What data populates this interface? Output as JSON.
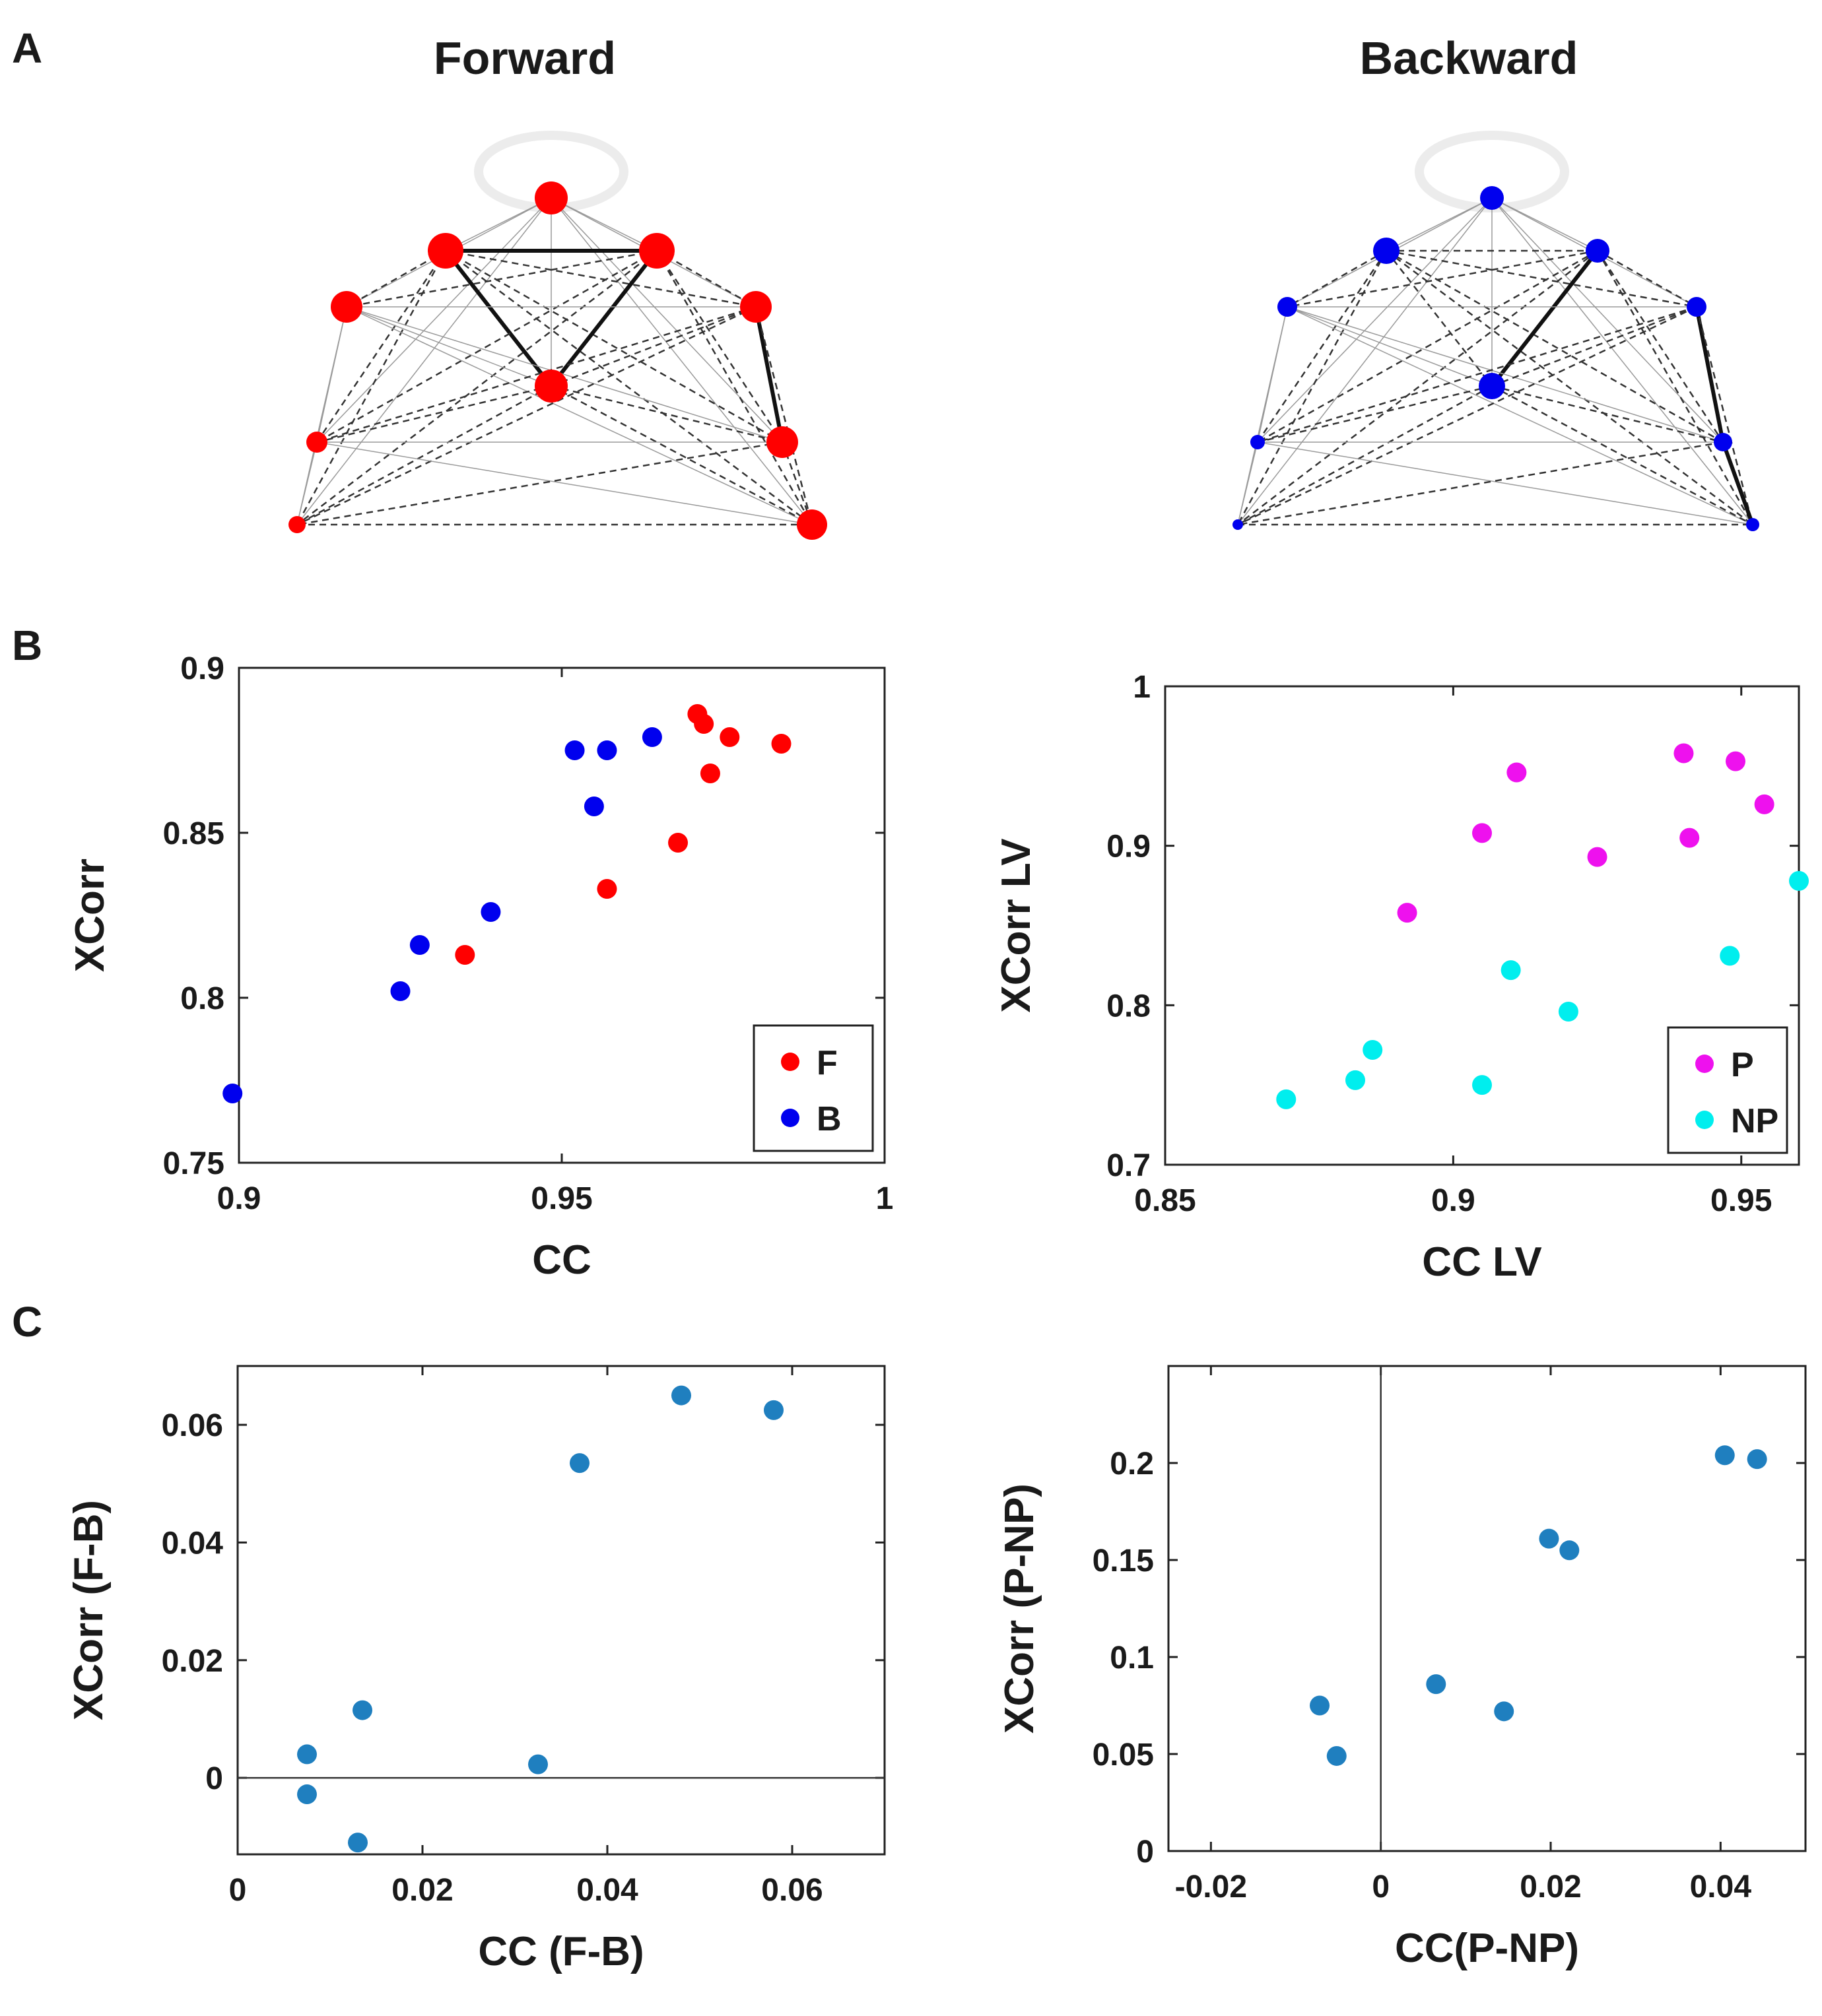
{
  "panel_labels": [
    "A",
    "B",
    "C"
  ],
  "network_titles": {
    "forward": "Forward",
    "backward": "Backward"
  },
  "colors": {
    "forward": "#ff0000",
    "backward": "#0000ee",
    "p": "#ee11ee",
    "np": "#00eeee",
    "diff": "#1f7fbf"
  },
  "chart_data": [
    {
      "id": "b-left",
      "type": "scatter",
      "xlabel": "CC",
      "ylabel": "XCorr",
      "xlim": [
        0.9,
        1
      ],
      "ylim": [
        0.75,
        0.9
      ],
      "xticks": [
        0.9,
        0.95,
        1
      ],
      "xtick_labels": [
        "0.9",
        "0.95",
        "1"
      ],
      "yticks": [
        0.75,
        0.8,
        0.85,
        0.9
      ],
      "ytick_labels": [
        "0.75",
        "0.8",
        "0.85",
        "0.9"
      ],
      "legend": {
        "position": "bottom-right",
        "entries": [
          "F",
          "B"
        ]
      },
      "series": [
        {
          "name": "F",
          "color": "#ff0000",
          "x": [
            0.971,
            0.972,
            0.976,
            0.984,
            0.973,
            0.968,
            0.957,
            0.935
          ],
          "y": [
            0.886,
            0.883,
            0.879,
            0.877,
            0.868,
            0.847,
            0.833,
            0.813
          ]
        },
        {
          "name": "B",
          "color": "#0000ee",
          "x": [
            0.952,
            0.957,
            0.964,
            0.955,
            0.939,
            0.928,
            0.925,
            0.899
          ],
          "y": [
            0.875,
            0.875,
            0.879,
            0.858,
            0.826,
            0.816,
            0.802,
            0.771
          ]
        }
      ]
    },
    {
      "id": "b-right",
      "type": "scatter",
      "xlabel": "CC LV",
      "ylabel": "XCorr LV",
      "xlim": [
        0.85,
        0.96
      ],
      "ylim": [
        0.7,
        1
      ],
      "xticks": [
        0.85,
        0.9,
        0.95
      ],
      "xtick_labels": [
        "0.85",
        "0.9",
        "0.95"
      ],
      "yticks": [
        0.7,
        0.8,
        0.9,
        1
      ],
      "ytick_labels": [
        "0.7",
        "0.8",
        "0.9",
        "1"
      ],
      "legend": {
        "position": "bottom-right",
        "entries": [
          "P",
          "NP"
        ]
      },
      "series": [
        {
          "name": "P",
          "color": "#ee11ee",
          "x": [
            0.94,
            0.949,
            0.954,
            0.911,
            0.905,
            0.941,
            0.925,
            0.892
          ],
          "y": [
            0.958,
            0.953,
            0.926,
            0.946,
            0.908,
            0.905,
            0.893,
            0.858
          ]
        },
        {
          "name": "NP",
          "color": "#00eeee",
          "x": [
            0.96,
            0.948,
            0.91,
            0.92,
            0.886,
            0.883,
            0.905,
            0.871
          ],
          "y": [
            0.878,
            0.831,
            0.822,
            0.796,
            0.772,
            0.753,
            0.75,
            0.741
          ]
        }
      ]
    },
    {
      "id": "c-left",
      "type": "scatter",
      "xlabel": "CC (F-B)",
      "ylabel": "XCorr (F-B)",
      "xlim": [
        0,
        0.07
      ],
      "ylim": [
        -0.013,
        0.07
      ],
      "xticks": [
        0,
        0.02,
        0.04,
        0.06
      ],
      "xtick_labels": [
        "0",
        "0.02",
        "0.04",
        "0.06"
      ],
      "yticks": [
        0,
        0.02,
        0.04,
        0.06
      ],
      "ytick_labels": [
        "0",
        "0.02",
        "0.04",
        "0.06"
      ],
      "zero_line": "horizontal",
      "series": [
        {
          "name": "F-B",
          "color": "#1f7fbf",
          "x": [
            0.048,
            0.058,
            0.037,
            0.0135,
            0.0075,
            0.0325,
            0.0075,
            0.013
          ],
          "y": [
            0.065,
            0.0625,
            0.0535,
            0.0115,
            0.004,
            0.0023,
            -0.0028,
            -0.011
          ]
        }
      ]
    },
    {
      "id": "c-right",
      "type": "scatter",
      "xlabel": "CC(P-NP)",
      "ylabel": "XCorr (P-NP)",
      "xlim": [
        -0.025,
        0.05
      ],
      "ylim": [
        0,
        0.25
      ],
      "xticks": [
        -0.02,
        0,
        0.02,
        0.04
      ],
      "xtick_labels": [
        "-0.02",
        "0",
        "0.02",
        "0.04"
      ],
      "yticks": [
        0,
        0.05,
        0.1,
        0.15,
        0.2
      ],
      "ytick_labels": [
        "0",
        "0.05",
        "0.1",
        "0.15",
        "0.2"
      ],
      "zero_line": "vertical",
      "series": [
        {
          "name": "P-NP",
          "color": "#1f7fbf",
          "x": [
            0.0405,
            0.0443,
            0.0198,
            0.0222,
            0.0065,
            0.0145,
            -0.0072,
            -0.0052
          ],
          "y": [
            0.204,
            0.202,
            0.161,
            0.155,
            0.086,
            0.072,
            0.075,
            0.049
          ]
        }
      ]
    }
  ]
}
